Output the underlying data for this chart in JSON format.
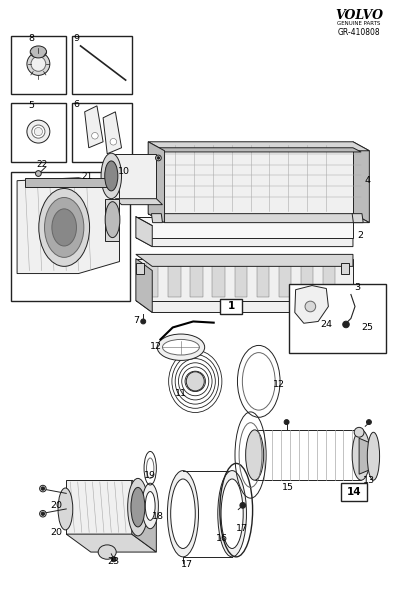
{
  "background_color": "#ffffff",
  "fig_width": 4.11,
  "fig_height": 6.01,
  "dpi": 100,
  "volvo_text": "VOLVO",
  "volvo_subtitle": "GENUINE PARTS",
  "part_number": "GR-410808",
  "label_fontsize": 7.0,
  "gray": "#222222",
  "lgray": "#666666",
  "llgray": "#aaaaaa",
  "fill_light": "#f0f0f0",
  "fill_mid": "#d8d8d8",
  "fill_dark": "#bbbbbb"
}
